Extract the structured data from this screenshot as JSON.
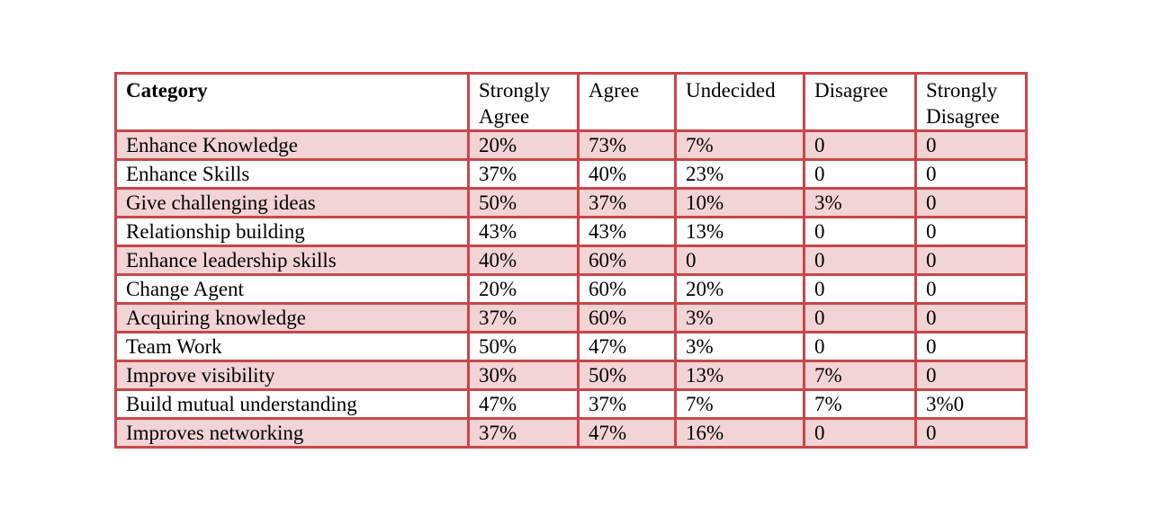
{
  "table": {
    "headers": [
      "Category",
      "Strongly Agree",
      "Agree",
      "Undecided",
      "Disagree",
      "Strongly Disagree"
    ],
    "rows": [
      [
        "Enhance Knowledge",
        "20%",
        "73%",
        "7%",
        "0",
        "0"
      ],
      [
        "Enhance Skills",
        "37%",
        "40%",
        "23%",
        "0",
        "0"
      ],
      [
        "Give challenging ideas",
        "50%",
        "37%",
        "10%",
        "3%",
        "0"
      ],
      [
        "Relationship building",
        "43%",
        "43%",
        "13%",
        "0",
        "0"
      ],
      [
        "Enhance leadership skills",
        "40%",
        "60%",
        "0",
        "0",
        "0"
      ],
      [
        "Change Agent",
        "20%",
        "60%",
        "20%",
        "0",
        "0"
      ],
      [
        "Acquiring knowledge",
        "37%",
        "60%",
        "3%",
        "0",
        "0"
      ],
      [
        "Team Work",
        "50%",
        "47%",
        "3%",
        "0",
        "0"
      ],
      [
        "Improve visibility",
        "30%",
        "50%",
        "13%",
        "7%",
        "0"
      ],
      [
        "Build mutual understanding",
        "47%",
        "37%",
        "7%",
        "7%",
        "3%0"
      ],
      [
        "Improves networking",
        "37%",
        "47%",
        "16%",
        "0",
        "0"
      ]
    ]
  },
  "colors": {
    "border": "#c9464b",
    "shaded_row": "#f2d4d4",
    "plain_row": "#ffffff"
  }
}
